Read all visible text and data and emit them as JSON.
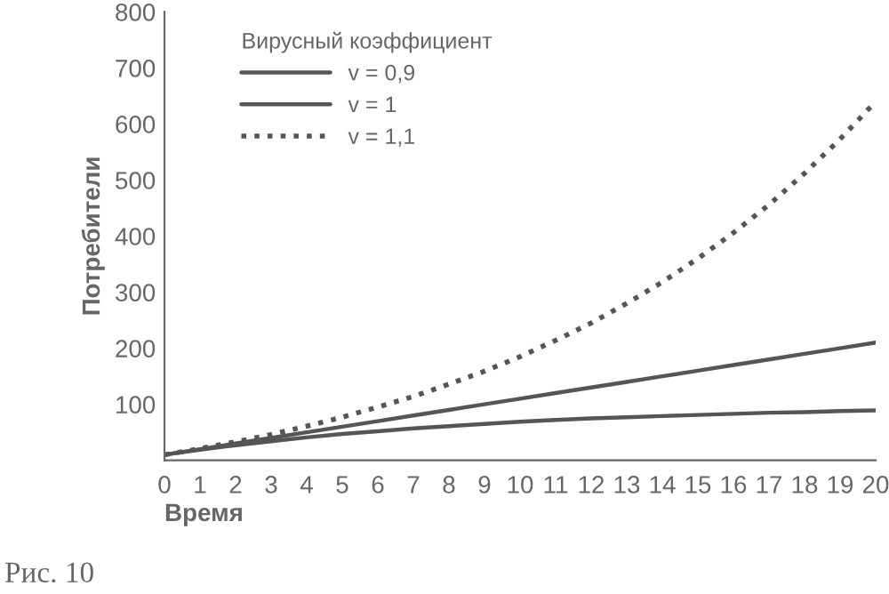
{
  "chart_data": {
    "type": "line",
    "xlabel": "Время",
    "ylabel": "Потребители",
    "legend_title": "Вирусный коэффициент",
    "x": [
      0,
      1,
      2,
      3,
      4,
      5,
      6,
      7,
      8,
      9,
      10,
      11,
      12,
      13,
      14,
      15,
      16,
      17,
      18,
      19,
      20
    ],
    "series": [
      {
        "name": "v = 0,9",
        "color": "#555555",
        "line_style": "solid",
        "values": [
          10,
          19,
          27,
          34,
          41,
          47,
          52,
          57,
          61,
          65,
          69,
          72,
          75,
          77,
          79,
          81,
          83,
          85,
          86,
          88,
          89
        ]
      },
      {
        "name": "v = 1",
        "color": "#555555",
        "line_style": "solid",
        "values": [
          10,
          20,
          30,
          40,
          50,
          60,
          70,
          80,
          90,
          100,
          110,
          120,
          130,
          140,
          150,
          160,
          170,
          180,
          190,
          200,
          210
        ]
      },
      {
        "name": "v = 1,1",
        "color": "#555555",
        "line_style": "dotted",
        "values": [
          10,
          21,
          33,
          46,
          61,
          77,
          95,
          114,
          136,
          159,
          185,
          214,
          245,
          280,
          318,
          360,
          406,
          456,
          512,
          573,
          640
        ]
      }
    ],
    "xlim": [
      0,
      20
    ],
    "ylim": [
      0,
      800
    ],
    "xticks": [
      0,
      1,
      2,
      3,
      4,
      5,
      6,
      7,
      8,
      9,
      10,
      11,
      12,
      13,
      14,
      15,
      16,
      17,
      18,
      19,
      20
    ],
    "yticks": [
      100,
      200,
      300,
      400,
      500,
      600,
      700,
      800
    ],
    "grid": false,
    "legend": "top left",
    "annotations": [
      "Рис. 10"
    ]
  }
}
